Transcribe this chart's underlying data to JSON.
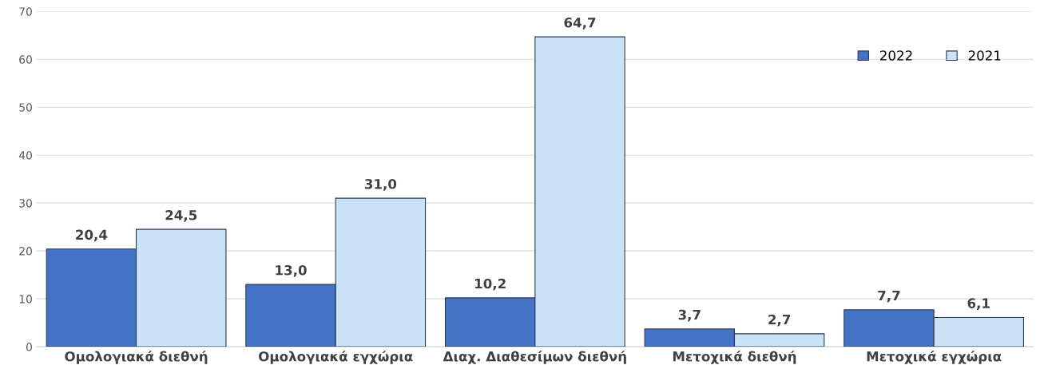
{
  "chart_data": {
    "type": "bar",
    "categories": [
      "Ομολογιακά διεθνή",
      "Ομολογιακά εγχώρια",
      "Διαχ. Διαθεσίμων διεθνή",
      "Μετοχικά διεθνή",
      "Μετοχικά εγχώρια"
    ],
    "series": [
      {
        "name": "2022",
        "color": "#4472c4",
        "values": [
          20.4,
          13.0,
          10.2,
          3.7,
          7.7
        ],
        "value_labels": [
          "20,4",
          "13,0",
          "10,2",
          "3,7",
          "7,7"
        ]
      },
      {
        "name": "2021",
        "color": "#c9e2f8",
        "values": [
          24.5,
          31.0,
          64.7,
          2.7,
          6.1
        ],
        "value_labels": [
          "24,5",
          "31,0",
          "64,7",
          "2,7",
          "6,1"
        ]
      }
    ],
    "ylim": [
      0,
      70
    ],
    "yticks": [
      0,
      10,
      20,
      30,
      40,
      50,
      60,
      70
    ],
    "grid": "y",
    "legend": "top right"
  }
}
